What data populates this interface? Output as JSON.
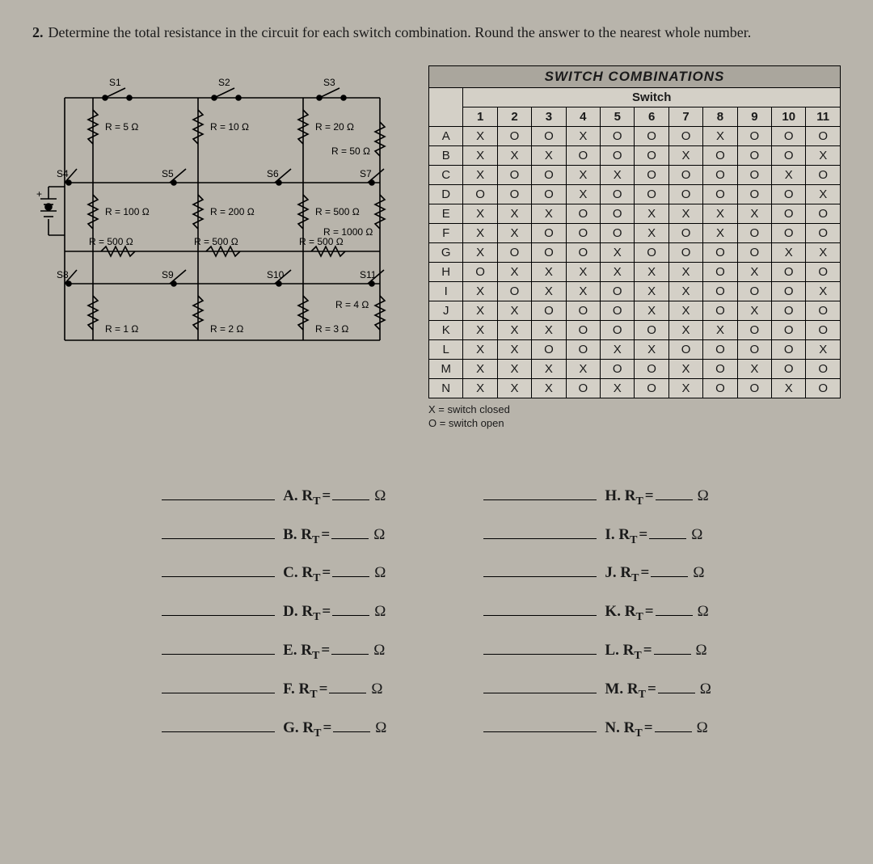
{
  "question": {
    "number": "2.",
    "text": "Determine the total resistance in the circuit for each switch combination. Round the answer to the nearest whole number."
  },
  "circuit": {
    "switches_top": [
      "S1",
      "S2",
      "S3"
    ],
    "switches_mid": [
      "S4",
      "S5",
      "S6",
      "S7"
    ],
    "switches_bot": [
      "S8",
      "S9",
      "S10",
      "S11"
    ],
    "r_top": [
      "R = 5 Ω",
      "R = 10 Ω",
      "R = 20 Ω"
    ],
    "r_top_right": "R = 50 Ω",
    "r_mid": [
      "R = 100 Ω",
      "R = 200 Ω",
      "R = 500 Ω"
    ],
    "r_mid_right": "R = 1000 Ω",
    "r_series": [
      "R = 500 Ω",
      "R = 500 Ω",
      "R = 500 Ω"
    ],
    "r_bot": [
      "R = 1 Ω",
      "R = 2 Ω",
      "R = 3 Ω"
    ],
    "r_bot_right": "R = 4 Ω"
  },
  "table": {
    "title": "SWITCH COMBINATIONS",
    "subhead": "Switch",
    "columns": [
      "1",
      "2",
      "3",
      "4",
      "5",
      "6",
      "7",
      "8",
      "9",
      "10",
      "11"
    ],
    "rows": [
      {
        "label": "A",
        "cells": [
          "X",
          "O",
          "O",
          "X",
          "O",
          "O",
          "O",
          "X",
          "O",
          "O",
          "O"
        ]
      },
      {
        "label": "B",
        "cells": [
          "X",
          "X",
          "X",
          "O",
          "O",
          "O",
          "X",
          "O",
          "O",
          "O",
          "X"
        ]
      },
      {
        "label": "C",
        "cells": [
          "X",
          "O",
          "O",
          "X",
          "X",
          "O",
          "O",
          "O",
          "O",
          "X",
          "O"
        ]
      },
      {
        "label": "D",
        "cells": [
          "O",
          "O",
          "O",
          "X",
          "O",
          "O",
          "O",
          "O",
          "O",
          "O",
          "X"
        ]
      },
      {
        "label": "E",
        "cells": [
          "X",
          "X",
          "X",
          "O",
          "O",
          "X",
          "X",
          "X",
          "X",
          "O",
          "O"
        ]
      },
      {
        "label": "F",
        "cells": [
          "X",
          "X",
          "O",
          "O",
          "O",
          "X",
          "O",
          "X",
          "O",
          "O",
          "O"
        ]
      },
      {
        "label": "G",
        "cells": [
          "X",
          "O",
          "O",
          "O",
          "X",
          "O",
          "O",
          "O",
          "O",
          "X",
          "X"
        ]
      },
      {
        "label": "H",
        "cells": [
          "O",
          "X",
          "X",
          "X",
          "X",
          "X",
          "X",
          "O",
          "X",
          "O",
          "O"
        ]
      },
      {
        "label": "I",
        "cells": [
          "X",
          "O",
          "X",
          "X",
          "O",
          "X",
          "X",
          "O",
          "O",
          "O",
          "X"
        ]
      },
      {
        "label": "J",
        "cells": [
          "X",
          "X",
          "O",
          "O",
          "O",
          "X",
          "X",
          "O",
          "X",
          "O",
          "O"
        ]
      },
      {
        "label": "K",
        "cells": [
          "X",
          "X",
          "X",
          "O",
          "O",
          "O",
          "X",
          "X",
          "O",
          "O",
          "O"
        ]
      },
      {
        "label": "L",
        "cells": [
          "X",
          "X",
          "O",
          "O",
          "X",
          "X",
          "O",
          "O",
          "O",
          "O",
          "X"
        ]
      },
      {
        "label": "M",
        "cells": [
          "X",
          "X",
          "X",
          "X",
          "O",
          "O",
          "X",
          "O",
          "X",
          "O",
          "O"
        ]
      },
      {
        "label": "N",
        "cells": [
          "X",
          "X",
          "X",
          "O",
          "X",
          "O",
          "X",
          "O",
          "O",
          "X",
          "O"
        ]
      }
    ],
    "legend_closed": "X = switch closed",
    "legend_open": "O = switch open"
  },
  "answers": {
    "symbol": "R",
    "sub": "T",
    "unit": "Ω",
    "left": [
      "A",
      "B",
      "C",
      "D",
      "E",
      "F",
      "G"
    ],
    "right": [
      "H",
      "I",
      "J",
      "K",
      "L",
      "M",
      "N"
    ]
  },
  "colors": {
    "page_bg": "#b8b4ab",
    "cell_bg": "#d4d0c7",
    "title_bg": "#aaa69d",
    "line": "#000000"
  }
}
